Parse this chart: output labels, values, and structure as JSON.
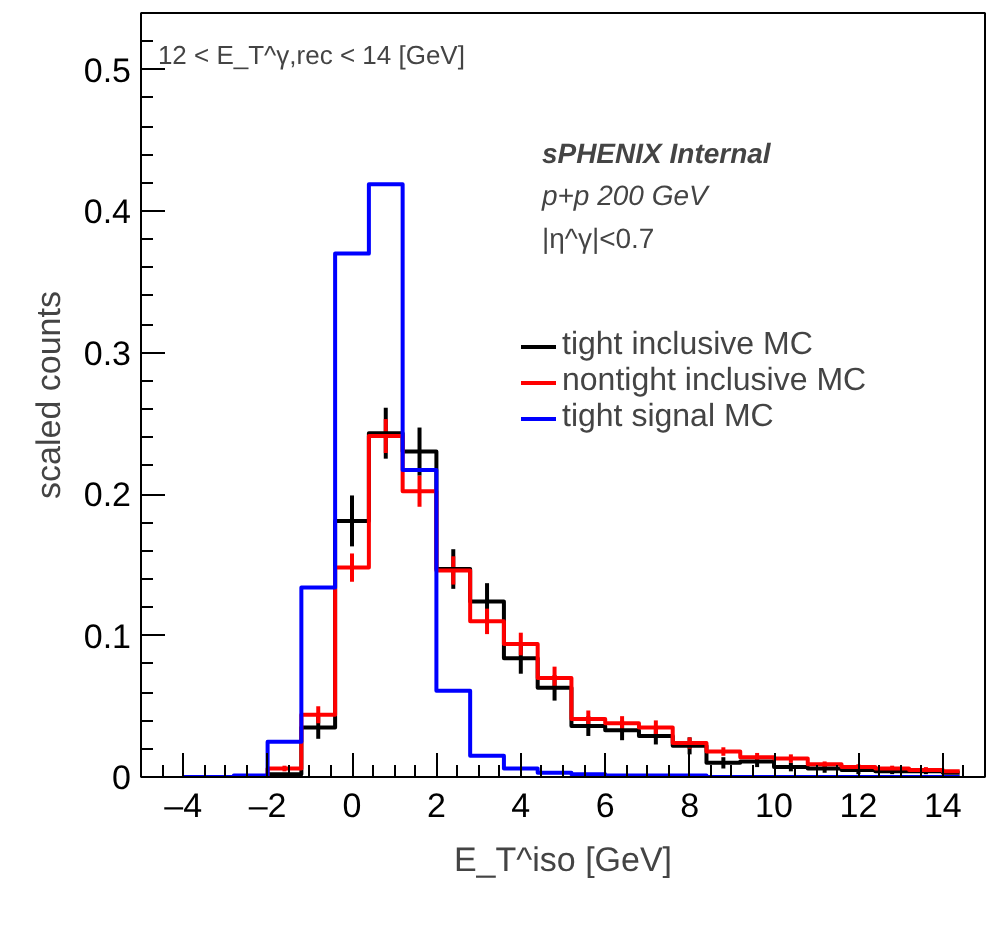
{
  "chart_data": {
    "type": "step",
    "xlabel": "E_T^iso [GeV]",
    "ylabel": "scaled counts",
    "x": [
      -4.0,
      -3.2,
      -2.4,
      -1.6,
      -0.8,
      0.0,
      0.8,
      1.6,
      2.4,
      3.2,
      4.0,
      4.8,
      5.6,
      6.4,
      7.2,
      8.0,
      8.8,
      9.6,
      10.4,
      11.2,
      12.0,
      12.8,
      13.6,
      14.4
    ],
    "series": [
      {
        "name": "tight inclusive MC",
        "color": "#000000",
        "values": [
          0,
          0,
          0,
          0.002,
          0.035,
          0.181,
          0.243,
          0.23,
          0.147,
          0.124,
          0.084,
          0.063,
          0.036,
          0.033,
          0.029,
          0.022,
          0.01,
          0.011,
          0.007,
          0.006,
          0.005,
          0.004,
          0.004,
          0.003
        ],
        "errors": [
          null,
          null,
          null,
          null,
          0.008,
          0.018,
          0.018,
          0.017,
          0.014,
          0.013,
          0.011,
          0.009,
          0.007,
          0.007,
          0.006,
          0.006,
          0.004,
          0.004,
          0.003,
          0.003,
          0.003,
          0.002,
          0.002,
          null
        ]
      },
      {
        "name": "nontight inclusive MC",
        "color": "#ff0000",
        "values": [
          0,
          0,
          0,
          0.006,
          0.044,
          0.148,
          0.241,
          0.202,
          0.146,
          0.11,
          0.094,
          0.07,
          0.041,
          0.038,
          0.035,
          0.024,
          0.018,
          0.014,
          0.013,
          0.009,
          0.007,
          0.006,
          0.005,
          0.004
        ],
        "errors": [
          null,
          null,
          null,
          0.002,
          0.006,
          0.01,
          0.012,
          0.011,
          0.01,
          0.009,
          0.008,
          0.008,
          0.006,
          0.005,
          0.005,
          0.004,
          0.003,
          0.003,
          0.003,
          0.002,
          0.002,
          0.002,
          0.002,
          null
        ]
      },
      {
        "name": "tight signal MC",
        "color": "#0000ff",
        "values": [
          0,
          0,
          0.001,
          0.025,
          0.134,
          0.37,
          0.419,
          0.217,
          0.061,
          0.015,
          0.006,
          0.003,
          0.002,
          0.001,
          0.001,
          0.001,
          0,
          0,
          0,
          0,
          0,
          0,
          0,
          0
        ]
      }
    ],
    "xlim": [
      -5,
      15
    ],
    "xticks": [
      {
        "value": -4,
        "label": "–4"
      },
      {
        "value": -2,
        "label": "–2"
      },
      0,
      2,
      4,
      6,
      8,
      10,
      12,
      14
    ],
    "ylim": [
      0,
      0.54
    ],
    "yticks": [
      0,
      0.1,
      0.2,
      0.3,
      0.4,
      0.5
    ],
    "legend": "top right",
    "annotations": [
      "12 < E_T^γ,rec < 14 [GeV]",
      "sPHENIX Internal",
      "p+p 200 GeV",
      "|η^γ|<0.7"
    ]
  }
}
